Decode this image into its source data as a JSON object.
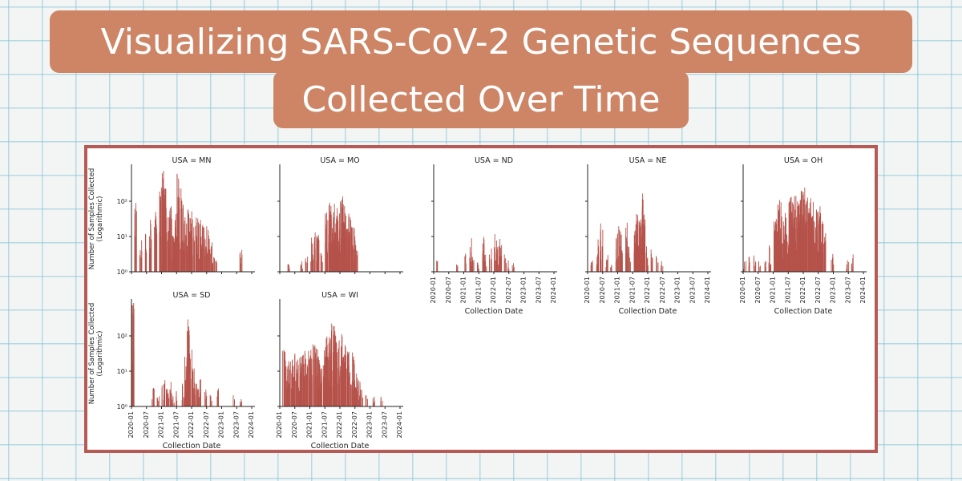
{
  "title": {
    "line1": "Visualizing SARS-CoV-2 Genetic Sequences",
    "line2": "Collected Over Time"
  },
  "colors": {
    "bar": "#b5524a",
    "title_bg": "#cd8566",
    "frame": "#b55a55"
  },
  "chart_data": {
    "type": "bar",
    "layout": "facet-grid",
    "x_tick_labels": [
      "2020-01",
      "2020-07",
      "2021-01",
      "2021-07",
      "2022-01",
      "2022-07",
      "2023-01",
      "2023-07",
      "2024-01"
    ],
    "x_range": [
      "2020-01",
      "2024-01"
    ],
    "xlabel": "Collection Date",
    "ylabel_line1": "Number of Samples Collected",
    "ylabel_line2": "(Logarithmic)",
    "yscale": "log",
    "y_range": [
      1,
      1000
    ],
    "y_tick_labels": [
      "10⁰",
      "10¹",
      "10²"
    ],
    "facets": [
      {
        "label": "USA = MN",
        "peaks": [
          {
            "t": "2020-02",
            "v": 60
          },
          {
            "t": "2020-04",
            "v": 8
          },
          {
            "t": "2020-06",
            "v": 12
          },
          {
            "t": "2020-08",
            "v": 25
          },
          {
            "t": "2020-10",
            "v": 40
          },
          {
            "t": "2020-12",
            "v": 150
          },
          {
            "t": "2021-01",
            "v": 600
          },
          {
            "t": "2021-02",
            "v": 150
          },
          {
            "t": "2021-03",
            "v": 30
          },
          {
            "t": "2021-04",
            "v": 50
          },
          {
            "t": "2021-05",
            "v": 10
          },
          {
            "t": "2021-06",
            "v": 40
          },
          {
            "t": "2021-07",
            "v": 350
          },
          {
            "t": "2021-08",
            "v": 150
          },
          {
            "t": "2021-09",
            "v": 70
          },
          {
            "t": "2021-10",
            "v": 50
          },
          {
            "t": "2021-11",
            "v": 45
          },
          {
            "t": "2021-12",
            "v": 40
          },
          {
            "t": "2022-01",
            "v": 35
          },
          {
            "t": "2022-02",
            "v": 30
          },
          {
            "t": "2022-03",
            "v": 25
          },
          {
            "t": "2022-04",
            "v": 30
          },
          {
            "t": "2022-05",
            "v": 20
          },
          {
            "t": "2022-06",
            "v": 15
          },
          {
            "t": "2022-07",
            "v": 12
          },
          {
            "t": "2022-08",
            "v": 6
          },
          {
            "t": "2022-09",
            "v": 3
          },
          {
            "t": "2022-10",
            "v": 2
          },
          {
            "t": "2023-08",
            "v": 4
          }
        ]
      },
      {
        "label": "USA = MO",
        "peaks": [
          {
            "t": "2020-04",
            "v": 2
          },
          {
            "t": "2020-09",
            "v": 2
          },
          {
            "t": "2020-11",
            "v": 3
          },
          {
            "t": "2021-01",
            "v": 8
          },
          {
            "t": "2021-02",
            "v": 20
          },
          {
            "t": "2021-03",
            "v": 10
          },
          {
            "t": "2021-04",
            "v": 12
          },
          {
            "t": "2021-05",
            "v": 5
          },
          {
            "t": "2021-07",
            "v": 40
          },
          {
            "t": "2021-08",
            "v": 90
          },
          {
            "t": "2021-09",
            "v": 70
          },
          {
            "t": "2021-10",
            "v": 80
          },
          {
            "t": "2021-11",
            "v": 50
          },
          {
            "t": "2021-12",
            "v": 40
          },
          {
            "t": "2022-01",
            "v": 100
          },
          {
            "t": "2022-02",
            "v": 60
          },
          {
            "t": "2022-03",
            "v": 30
          },
          {
            "t": "2022-04",
            "v": 40
          },
          {
            "t": "2022-05",
            "v": 25
          },
          {
            "t": "2022-06",
            "v": 20
          },
          {
            "t": "2022-07",
            "v": 6
          }
        ]
      },
      {
        "label": "USA = ND",
        "peaks": [
          {
            "t": "2020-02",
            "v": 2
          },
          {
            "t": "2020-10",
            "v": 2
          },
          {
            "t": "2021-01",
            "v": 3
          },
          {
            "t": "2021-03",
            "v": 8
          },
          {
            "t": "2021-04",
            "v": 3
          },
          {
            "t": "2021-06",
            "v": 2
          },
          {
            "t": "2021-08",
            "v": 10
          },
          {
            "t": "2021-09",
            "v": 3
          },
          {
            "t": "2021-11",
            "v": 5
          },
          {
            "t": "2022-01",
            "v": 10
          },
          {
            "t": "2022-02",
            "v": 6
          },
          {
            "t": "2022-03",
            "v": 8
          },
          {
            "t": "2022-05",
            "v": 3
          },
          {
            "t": "2022-06",
            "v": 2
          },
          {
            "t": "2022-08",
            "v": 2
          }
        ]
      },
      {
        "label": "USA = NE",
        "peaks": [
          {
            "t": "2020-02",
            "v": 2
          },
          {
            "t": "2020-04",
            "v": 3
          },
          {
            "t": "2020-05",
            "v": 10
          },
          {
            "t": "2020-06",
            "v": 20
          },
          {
            "t": "2020-08",
            "v": 3
          },
          {
            "t": "2020-10",
            "v": 2
          },
          {
            "t": "2020-12",
            "v": 10
          },
          {
            "t": "2021-01",
            "v": 15
          },
          {
            "t": "2021-02",
            "v": 10
          },
          {
            "t": "2021-04",
            "v": 20
          },
          {
            "t": "2021-05",
            "v": 5
          },
          {
            "t": "2021-07",
            "v": 25
          },
          {
            "t": "2021-08",
            "v": 40
          },
          {
            "t": "2021-09",
            "v": 30
          },
          {
            "t": "2021-10",
            "v": 150
          },
          {
            "t": "2021-11",
            "v": 40
          },
          {
            "t": "2021-12",
            "v": 5
          },
          {
            "t": "2022-02",
            "v": 5
          },
          {
            "t": "2022-04",
            "v": 3
          },
          {
            "t": "2022-06",
            "v": 2
          }
        ]
      },
      {
        "label": "USA = OH",
        "peaks": [
          {
            "t": "2020-01",
            "v": 2
          },
          {
            "t": "2020-03",
            "v": 3
          },
          {
            "t": "2020-05",
            "v": 3
          },
          {
            "t": "2020-07",
            "v": 2
          },
          {
            "t": "2020-09",
            "v": 3
          },
          {
            "t": "2020-11",
            "v": 5
          },
          {
            "t": "2021-01",
            "v": 20
          },
          {
            "t": "2021-02",
            "v": 60
          },
          {
            "t": "2021-03",
            "v": 80
          },
          {
            "t": "2021-04",
            "v": 30
          },
          {
            "t": "2021-05",
            "v": 40
          },
          {
            "t": "2021-06",
            "v": 10
          },
          {
            "t": "2021-07",
            "v": 100
          },
          {
            "t": "2021-08",
            "v": 90
          },
          {
            "t": "2021-09",
            "v": 110
          },
          {
            "t": "2021-10",
            "v": 80
          },
          {
            "t": "2021-11",
            "v": 150
          },
          {
            "t": "2021-12",
            "v": 200
          },
          {
            "t": "2022-01",
            "v": 150
          },
          {
            "t": "2022-02",
            "v": 100
          },
          {
            "t": "2022-03",
            "v": 90
          },
          {
            "t": "2022-04",
            "v": 100
          },
          {
            "t": "2022-05",
            "v": 70
          },
          {
            "t": "2022-06",
            "v": 60
          },
          {
            "t": "2022-07",
            "v": 50
          },
          {
            "t": "2022-08",
            "v": 20
          },
          {
            "t": "2022-09",
            "v": 10
          },
          {
            "t": "2022-12",
            "v": 3
          },
          {
            "t": "2023-06",
            "v": 2
          },
          {
            "t": "2023-08",
            "v": 3
          }
        ]
      },
      {
        "label": "USA = SD",
        "peaks": [
          {
            "t": "2020-01",
            "v": 500
          },
          {
            "t": "2020-09",
            "v": 3
          },
          {
            "t": "2020-11",
            "v": 2
          },
          {
            "t": "2021-01",
            "v": 4
          },
          {
            "t": "2021-02",
            "v": 5
          },
          {
            "t": "2021-03",
            "v": 3
          },
          {
            "t": "2021-04",
            "v": 5
          },
          {
            "t": "2021-05",
            "v": 2
          },
          {
            "t": "2021-06",
            "v": 3
          },
          {
            "t": "2021-09",
            "v": 5
          },
          {
            "t": "2021-10",
            "v": 20
          },
          {
            "t": "2021-11",
            "v": 200
          },
          {
            "t": "2021-12",
            "v": 30
          },
          {
            "t": "2022-01",
            "v": 10
          },
          {
            "t": "2022-02",
            "v": 5
          },
          {
            "t": "2022-03",
            "v": 3
          },
          {
            "t": "2022-04",
            "v": 5
          },
          {
            "t": "2022-06",
            "v": 3
          },
          {
            "t": "2022-08",
            "v": 2
          },
          {
            "t": "2022-11",
            "v": 3
          },
          {
            "t": "2023-05",
            "v": 2
          },
          {
            "t": "2023-08",
            "v": 2
          }
        ]
      },
      {
        "label": "USA = WI",
        "peaks": [
          {
            "t": "2020-02",
            "v": 40
          },
          {
            "t": "2020-03",
            "v": 30
          },
          {
            "t": "2020-04",
            "v": 25
          },
          {
            "t": "2020-05",
            "v": 20
          },
          {
            "t": "2020-06",
            "v": 30
          },
          {
            "t": "2020-07",
            "v": 15
          },
          {
            "t": "2020-08",
            "v": 20
          },
          {
            "t": "2020-09",
            "v": 25
          },
          {
            "t": "2020-10",
            "v": 30
          },
          {
            "t": "2020-11",
            "v": 25
          },
          {
            "t": "2020-12",
            "v": 30
          },
          {
            "t": "2021-01",
            "v": 40
          },
          {
            "t": "2021-02",
            "v": 50
          },
          {
            "t": "2021-03",
            "v": 35
          },
          {
            "t": "2021-04",
            "v": 20
          },
          {
            "t": "2021-05",
            "v": 10
          },
          {
            "t": "2021-06",
            "v": 30
          },
          {
            "t": "2021-07",
            "v": 80
          },
          {
            "t": "2021-08",
            "v": 200
          },
          {
            "t": "2021-09",
            "v": 150
          },
          {
            "t": "2021-10",
            "v": 120
          },
          {
            "t": "2021-11",
            "v": 100
          },
          {
            "t": "2021-12",
            "v": 60
          },
          {
            "t": "2022-01",
            "v": 80
          },
          {
            "t": "2022-02",
            "v": 50
          },
          {
            "t": "2022-03",
            "v": 40
          },
          {
            "t": "2022-04",
            "v": 30
          },
          {
            "t": "2022-05",
            "v": 25
          },
          {
            "t": "2022-06",
            "v": 20
          },
          {
            "t": "2022-07",
            "v": 10
          },
          {
            "t": "2022-08",
            "v": 5
          },
          {
            "t": "2022-09",
            "v": 3
          },
          {
            "t": "2022-11",
            "v": 2
          },
          {
            "t": "2023-02",
            "v": 2
          },
          {
            "t": "2023-05",
            "v": 2
          }
        ]
      }
    ]
  }
}
